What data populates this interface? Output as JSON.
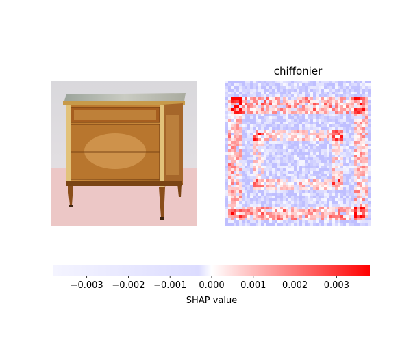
{
  "chart_data": {
    "type": "heatmap",
    "title": "chiffonier",
    "panels": [
      {
        "kind": "input-image",
        "subject": "furniture-photo"
      },
      {
        "kind": "shap-map",
        "label": "chiffonier"
      }
    ],
    "colorbar": {
      "label": "SHAP value",
      "vmin": -0.0038,
      "vmax": 0.0038,
      "ticks": [
        -0.003,
        -0.002,
        -0.001,
        0.0,
        0.001,
        0.002,
        0.003
      ],
      "tick_labels": [
        "−0.003",
        "−0.002",
        "−0.001",
        "0.000",
        "0.001",
        "0.002",
        "0.003"
      ],
      "low_color": "#0000ff",
      "mid_color": "#ffffff",
      "high_color": "#ff0000"
    }
  }
}
